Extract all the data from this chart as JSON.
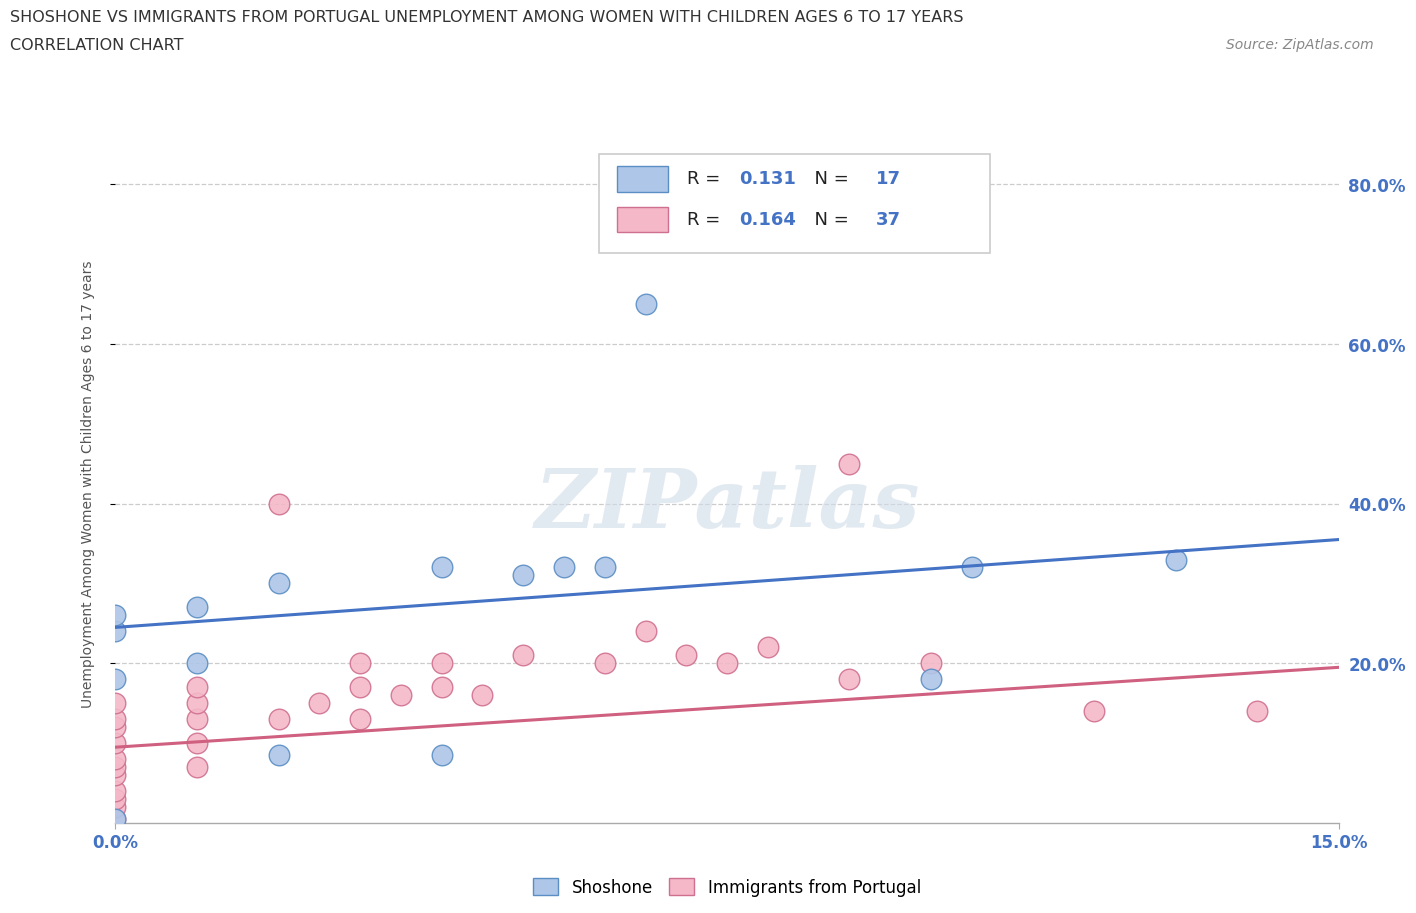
{
  "title_line1": "SHOSHONE VS IMMIGRANTS FROM PORTUGAL UNEMPLOYMENT AMONG WOMEN WITH CHILDREN AGES 6 TO 17 YEARS",
  "title_line2": "CORRELATION CHART",
  "source_text": "Source: ZipAtlas.com",
  "ylabel": "Unemployment Among Women with Children Ages 6 to 17 years",
  "xlim": [
    0.0,
    0.15
  ],
  "ylim": [
    0.0,
    0.85
  ],
  "ytick_labels": [
    "20.0%",
    "40.0%",
    "60.0%",
    "80.0%"
  ],
  "ytick_values": [
    0.2,
    0.4,
    0.6,
    0.8
  ],
  "shoshone_R": 0.131,
  "shoshone_N": 17,
  "portugal_R": 0.164,
  "portugal_N": 37,
  "shoshone_color": "#aec6e8",
  "shoshone_edge_color": "#5b8ec4",
  "shoshone_line_color": "#4472c4",
  "portugal_color": "#f4b8c8",
  "portugal_edge_color": "#d07090",
  "portugal_line_color": "#d06080",
  "watermark_text": "ZIPatlas",
  "shoshone_x": [
    0.0,
    0.0,
    0.0,
    0.0,
    0.01,
    0.01,
    0.02,
    0.02,
    0.04,
    0.04,
    0.05,
    0.055,
    0.06,
    0.065,
    0.1,
    0.105,
    0.13
  ],
  "shoshone_y": [
    0.005,
    0.18,
    0.24,
    0.26,
    0.2,
    0.27,
    0.3,
    0.085,
    0.32,
    0.085,
    0.31,
    0.32,
    0.32,
    0.65,
    0.18,
    0.32,
    0.33
  ],
  "portugal_x": [
    0.0,
    0.0,
    0.0,
    0.0,
    0.0,
    0.0,
    0.0,
    0.0,
    0.0,
    0.0,
    0.0,
    0.01,
    0.01,
    0.01,
    0.01,
    0.01,
    0.02,
    0.02,
    0.025,
    0.03,
    0.03,
    0.03,
    0.035,
    0.04,
    0.04,
    0.045,
    0.05,
    0.06,
    0.065,
    0.07,
    0.075,
    0.08,
    0.09,
    0.09,
    0.1,
    0.12,
    0.14
  ],
  "portugal_y": [
    0.005,
    0.02,
    0.03,
    0.04,
    0.06,
    0.07,
    0.08,
    0.1,
    0.12,
    0.13,
    0.15,
    0.07,
    0.1,
    0.13,
    0.15,
    0.17,
    0.13,
    0.4,
    0.15,
    0.13,
    0.17,
    0.2,
    0.16,
    0.17,
    0.2,
    0.16,
    0.21,
    0.2,
    0.24,
    0.21,
    0.2,
    0.22,
    0.18,
    0.45,
    0.2,
    0.14,
    0.14
  ],
  "shoshone_regline_y0": 0.245,
  "shoshone_regline_y1": 0.355,
  "portugal_regline_y0": 0.095,
  "portugal_regline_y1": 0.195
}
